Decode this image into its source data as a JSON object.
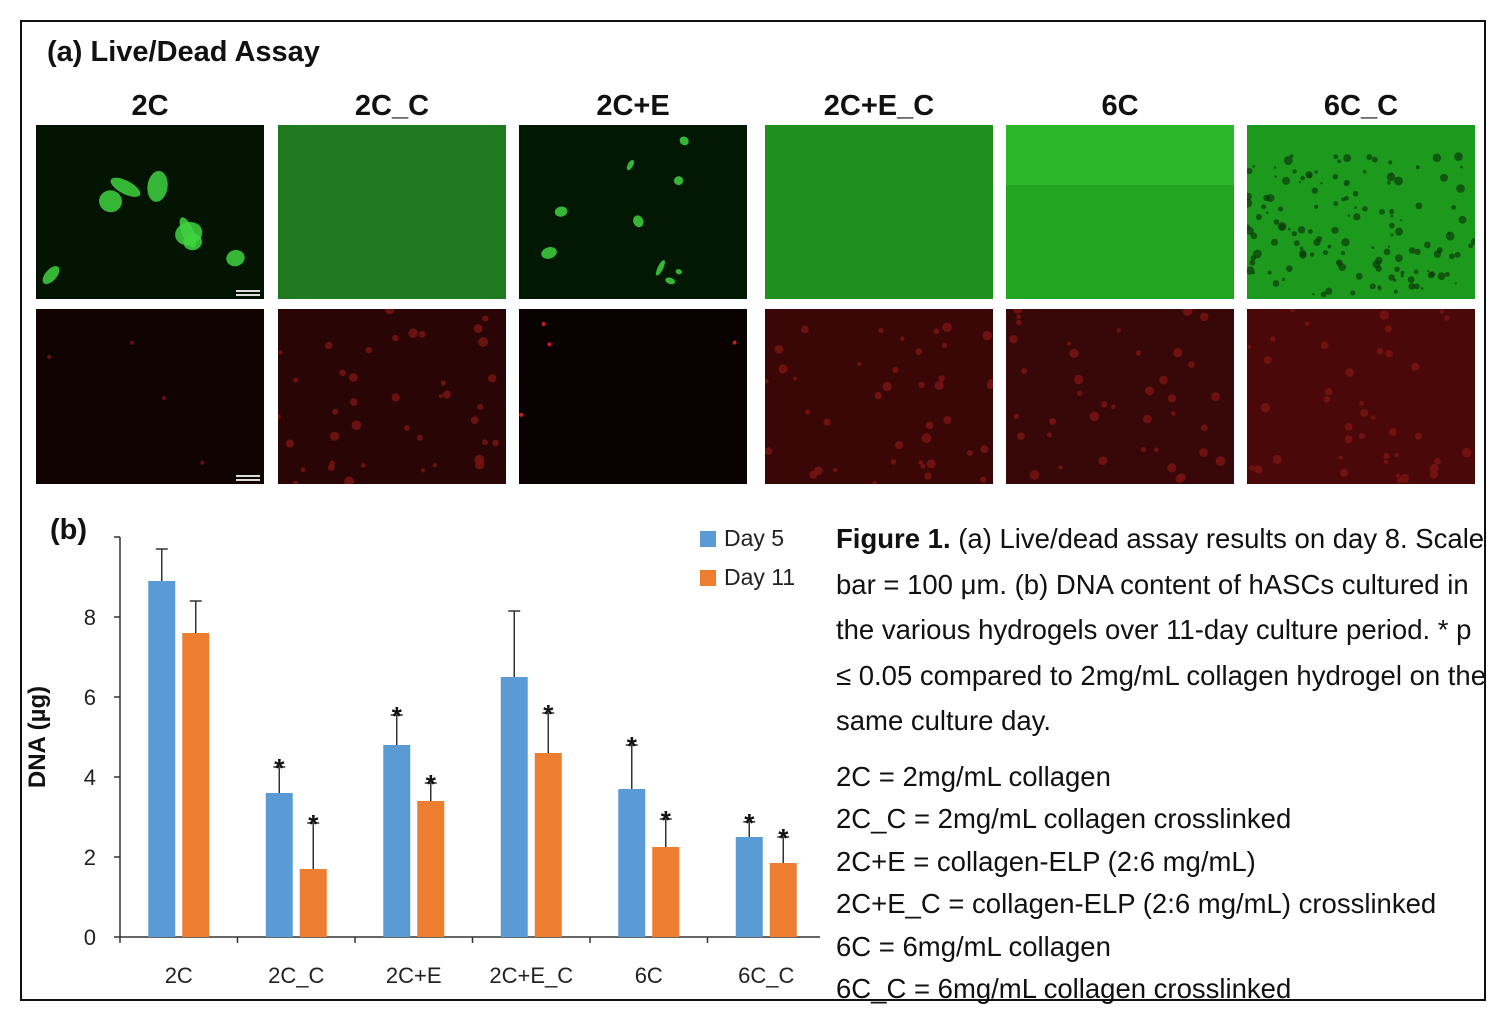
{
  "panel_a": {
    "title": "(a) Live/Dead Assay",
    "columns": [
      "2C",
      "2C_C",
      "2C+E",
      "2C+E_C",
      "6C",
      "6C_C"
    ]
  },
  "panel_b": {
    "label": "(b)"
  },
  "chart_data": {
    "type": "bar",
    "ylabel": "DNA (µg)",
    "xlabel": "",
    "ylim": [
      0,
      10
    ],
    "yticks": [
      0,
      2,
      4,
      6,
      8
    ],
    "categories": [
      "2C",
      "2C_C",
      "2C+E",
      "2C+E_C",
      "6C",
      "6C_C"
    ],
    "series": [
      {
        "name": "Day 5",
        "color": "#5B9BD5",
        "values": [
          8.9,
          3.6,
          4.8,
          6.5,
          3.7,
          2.5
        ],
        "errors": [
          0.8,
          0.65,
          0.75,
          1.65,
          1.1,
          0.38
        ],
        "significant": [
          false,
          true,
          true,
          false,
          true,
          true
        ]
      },
      {
        "name": "Day 11",
        "color": "#ED7D31",
        "values": [
          7.6,
          1.7,
          3.4,
          4.6,
          2.25,
          1.85
        ],
        "errors": [
          0.8,
          1.15,
          0.45,
          1.0,
          0.7,
          0.65
        ],
        "significant": [
          false,
          true,
          true,
          true,
          true,
          true
        ]
      }
    ],
    "significance_mark": "*",
    "legend_position": "top-right",
    "grid": false
  },
  "caption": {
    "label": "Figure 1.",
    "text": " (a) Live/dead assay results on day 8. Scale bar = 100 μm. (b) DNA content of hASCs cultured in the various hydrogels over 11-day culture period. * p ≤ 0.05 compared to 2mg/mL collagen hydrogel on the same culture day."
  },
  "definitions": [
    "2C = 2mg/mL collagen",
    "2C_C = 2mg/mL collagen crosslinked",
    "2C+E = collagen-ELP (2:6 mg/mL)",
    "2C+E_C = collagen-ELP (2:6 mg/mL) crosslinked",
    "6C = 6mg/mL collagen",
    "6C_C = 6mg/mL collagen crosslinked"
  ]
}
